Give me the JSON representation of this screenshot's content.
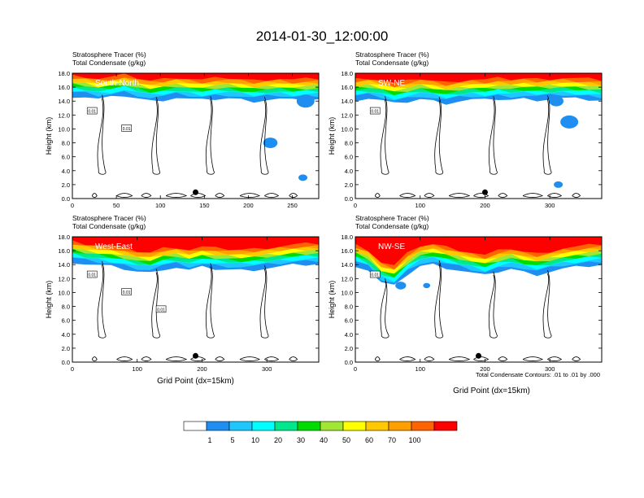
{
  "figure": {
    "title": "2014-01-30_12:00:00",
    "field_label_1": "Stratosphere Tracer   (%)",
    "field_label_2": "Total Condensate   (g/kg)",
    "contour_note": "Total Condensate Contours: .01 to .01 by .000"
  },
  "colors": {
    "levels": [
      "#ffffff",
      "#1e8ff0",
      "#1ec8ff",
      "#00ffff",
      "#00e88c",
      "#00dc00",
      "#a0e632",
      "#ffff00",
      "#ffc800",
      "#ffa000",
      "#ff6400",
      "#ff0000"
    ],
    "contour": "#000000",
    "marker": "#000000"
  },
  "colorbar": {
    "labels": [
      "1",
      "5",
      "10",
      "20",
      "30",
      "40",
      "50",
      "60",
      "70",
      "100"
    ]
  },
  "chart_data": [
    {
      "type": "heatmap",
      "panel_label": "South-North",
      "xlabel": "",
      "ylabel": "Height (km)",
      "xlim": [
        0,
        280
      ],
      "ylim": [
        0,
        18
      ],
      "xticks": [
        "0",
        "50",
        "100",
        "150",
        "200",
        "250"
      ],
      "xtick_values": [
        0,
        50,
        100,
        150,
        200,
        250
      ],
      "yticks": [
        "0.0",
        "2.0",
        "4.0",
        "6.0",
        "8.0",
        "10.0",
        "12.0",
        "14.0",
        "16.0",
        "18.0"
      ],
      "marker_x": 140,
      "contour_labels": [
        "0.01",
        "0.01"
      ],
      "tropopause_km": [
        16.3,
        16.2,
        15.9,
        16.1,
        16.4,
        16.0,
        15.6,
        15.8,
        16.1,
        15.9,
        15.7,
        15.9,
        16.0,
        15.8,
        15.6,
        15.8,
        15.9,
        15.7,
        15.8,
        15.9
      ],
      "blue_patches": [
        [
          225,
          8,
          4
        ],
        [
          265,
          14,
          5
        ],
        [
          262,
          3,
          2.5
        ]
      ]
    },
    {
      "type": "heatmap",
      "panel_label": "SW-NE",
      "xlabel": "",
      "ylabel": "Height (km)",
      "xlim": [
        0,
        380
      ],
      "ylim": [
        0,
        18
      ],
      "xticks": [
        "0",
        "100",
        "200",
        "300"
      ],
      "xtick_values": [
        0,
        100,
        200,
        300
      ],
      "yticks": [
        "0.0",
        "2.0",
        "4.0",
        "6.0",
        "8.0",
        "10.0",
        "12.0",
        "14.0",
        "16.0",
        "18.0"
      ],
      "marker_x": 200,
      "contour_labels": [
        "0.01"
      ],
      "tropopause_km": [
        15.8,
        16.0,
        15.7,
        15.2,
        15.5,
        15.9,
        15.6,
        15.3,
        15.6,
        15.8,
        15.7,
        15.9,
        15.8,
        15.9,
        15.8,
        15.9,
        16.0,
        15.9,
        15.8,
        15.7
      ],
      "blue_patches": [
        [
          330,
          11,
          5
        ],
        [
          310,
          14,
          4
        ],
        [
          313,
          2,
          2.5
        ]
      ]
    },
    {
      "type": "heatmap",
      "panel_label": "West-East",
      "xlabel": "Grid Point (dx=15km)",
      "ylabel": "Height (km)",
      "xlim": [
        0,
        380
      ],
      "ylim": [
        0,
        18
      ],
      "xticks": [
        "0",
        "100",
        "200",
        "300"
      ],
      "xtick_values": [
        0,
        100,
        200,
        300
      ],
      "yticks": [
        "0.0",
        "2.0",
        "4.0",
        "6.0",
        "8.0",
        "10.0",
        "12.0",
        "14.0",
        "16.0",
        "18.0"
      ],
      "marker_x": 190,
      "contour_labels": [
        "0.01",
        "0.01",
        "0.01"
      ],
      "tropopause_km": [
        16.0,
        15.7,
        15.5,
        15.3,
        15.0,
        14.6,
        14.4,
        15.0,
        15.2,
        14.8,
        15.2,
        15.0,
        14.9,
        14.8,
        14.9,
        15.1,
        15.3,
        15.5,
        15.6,
        15.7
      ],
      "blue_patches": []
    },
    {
      "type": "heatmap",
      "panel_label": "NW-SE",
      "xlabel": "Grid Point (dx=15km)",
      "ylabel": "Height (km)",
      "xlim": [
        0,
        380
      ],
      "ylim": [
        0,
        18
      ],
      "xticks": [
        "0",
        "100",
        "200",
        "300"
      ],
      "xtick_values": [
        0,
        100,
        200,
        300
      ],
      "yticks": [
        "0.0",
        "2.0",
        "4.0",
        "6.0",
        "8.0",
        "10.0",
        "12.0",
        "14.0",
        "16.0",
        "18.0"
      ],
      "marker_x": 190,
      "contour_labels": [
        "0.01"
      ],
      "tropopause_km": [
        15.5,
        14.8,
        13.0,
        12.5,
        14.2,
        15.4,
        15.6,
        15.2,
        14.8,
        14.4,
        14.0,
        14.6,
        15.0,
        14.5,
        14.2,
        14.6,
        15.0,
        15.2,
        15.4,
        15.6
      ],
      "blue_patches": [
        [
          70,
          11,
          3
        ],
        [
          110,
          11,
          2
        ]
      ]
    }
  ]
}
